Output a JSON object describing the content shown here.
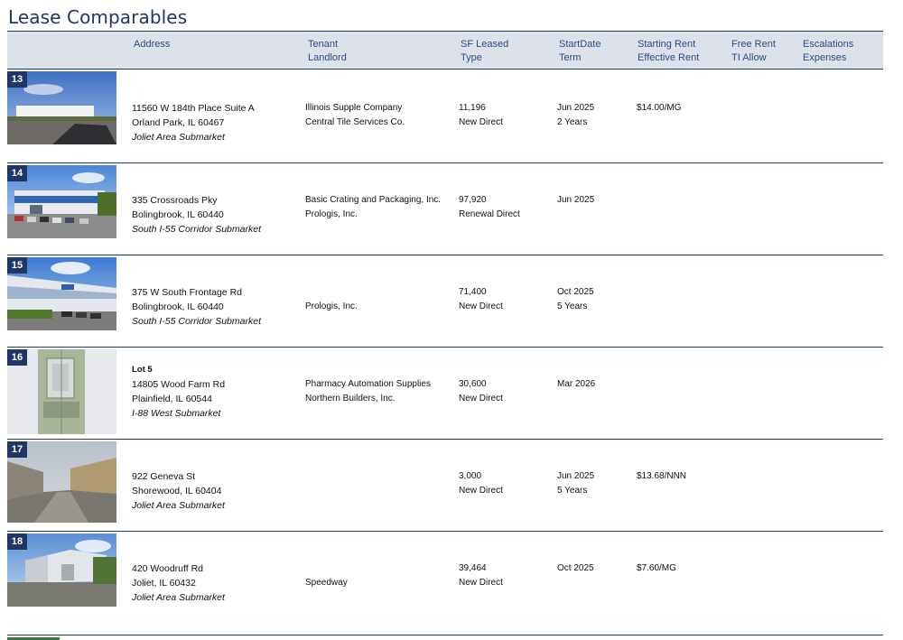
{
  "page": {
    "title": "Lease Comparables"
  },
  "header": {
    "address": "Address",
    "tenant": "Tenant",
    "landlord": "Landlord",
    "sf_leased": "SF Leased",
    "type": "Type",
    "start_date": "StartDate",
    "term": "Term",
    "starting_rent": "Starting Rent",
    "effective_rent": "Effective Rent",
    "free_rent": "Free Rent",
    "ti_allow": "TI Allow",
    "escalations": "Escalations",
    "expenses": "Expenses"
  },
  "rows": [
    {
      "number": "13",
      "street": "11560 W 184th Place Suite A",
      "city": "Orland Park, IL 60467",
      "submarket": "Joliet Area Submarket",
      "tenant": "Illinois Supple Company",
      "landlord": "Central Tile Services Co.",
      "sf": "11,196",
      "type": "New Direct",
      "date": "Jun 2025",
      "term": "2 Years",
      "rent": "$14.00/MG"
    },
    {
      "number": "14",
      "street": "335 Crossroads Pky",
      "city": "Bolingbrook, IL 60440",
      "submarket": "South I-55 Corridor Submarket",
      "tenant": "Basic Crating and Packaging, Inc.",
      "landlord": "Prologis, Inc.",
      "sf": "97,920",
      "type": "Renewal Direct",
      "date": "Jun 2025"
    },
    {
      "number": "15",
      "street": "375 W South Frontage Rd",
      "city": "Bolingbrook, IL 60440",
      "submarket": "South I-55 Corridor Submarket",
      "landlord": "Prologis, Inc.",
      "sf": "71,400",
      "type": "New Direct",
      "date": "Oct 2025",
      "term": "5 Years"
    },
    {
      "number": "16",
      "lot": "Lot 5",
      "street": "14805 Wood Farm Rd",
      "city": "Plainfield, IL 60544",
      "submarket": "I-88 West Submarket",
      "tenant": "Pharmacy Automation Supplies",
      "landlord": "Northern Builders, Inc.",
      "sf": "30,600",
      "type": "New Direct",
      "date": "Mar 2026"
    },
    {
      "number": "17",
      "street": "922 Geneva St",
      "city": "Shorewood, IL 60404",
      "submarket": "Joliet Area Submarket",
      "sf": "3,000",
      "type": "New Direct",
      "date": "Jun 2025",
      "term": "5 Years",
      "rent": "$13.68/NNN"
    },
    {
      "number": "18",
      "street": "420 Woodruff Rd",
      "city": "Joliet, IL 60432",
      "submarket": "Joliet Area Submarket",
      "landlord": "Speedway",
      "sf": "39,464",
      "type": "New Direct",
      "date": "Oct 2025",
      "rent": "$7.60/MG"
    }
  ]
}
